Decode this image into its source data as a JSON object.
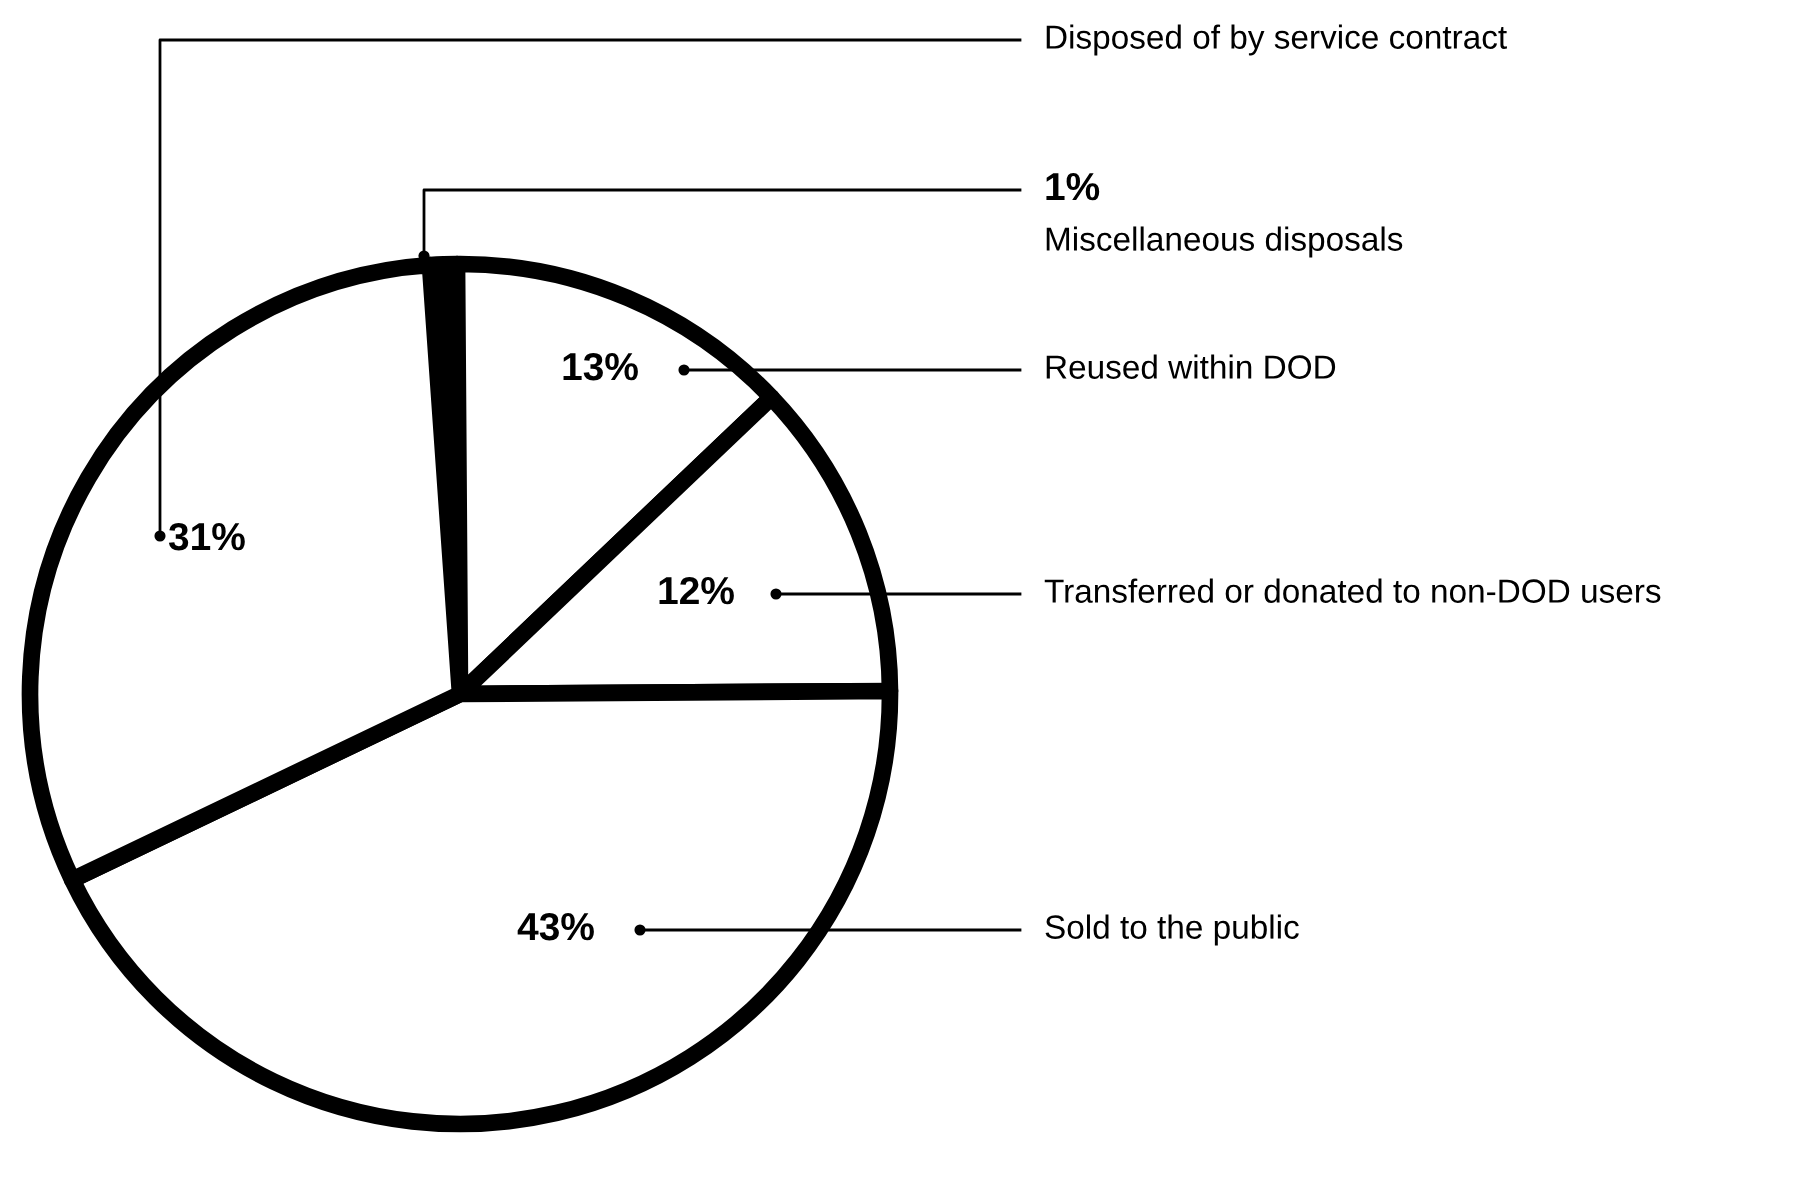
{
  "chart_data": {
    "type": "pie",
    "categories": [
      "Miscellaneous disposals",
      "Reused within DOD",
      "Transferred or donated to non-DOD users",
      "Sold to the public",
      "Disposed of by service contract"
    ],
    "values": [
      1,
      13,
      12,
      43,
      31
    ],
    "value_labels": [
      "1%",
      "13%",
      "12%",
      "43%",
      "31%"
    ],
    "colors": [
      "#000000",
      "#ffffff",
      "#ffffff",
      "#ffffff",
      "#ffffff"
    ],
    "legend": false
  }
}
